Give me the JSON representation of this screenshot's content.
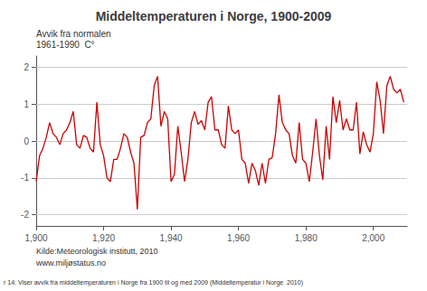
{
  "chart_data": {
    "type": "line",
    "title": "Middeltemperaturen i Norge, 1900-2009",
    "ylabel": [
      "Avvik fra normalen",
      "1961-1990  C°"
    ],
    "annotations": [
      "Kilde:Meteorologisk institutt, 2010",
      "www.miljøstatus.no",
      "r 14: Viser avvik fra middeltemperaturen i Norge fra 1900 til og med 2009 (Middeltemperatur i Norge  2010)"
    ],
    "color": "#cc0000",
    "xlim": [
      1900,
      2010
    ],
    "xticks": [
      1900,
      1920,
      1940,
      1960,
      1980,
      2000
    ],
    "ylim": [
      -2.3,
      2.3
    ],
    "yticks": [
      -2,
      -1,
      0,
      1,
      2
    ],
    "grid": true,
    "x": [
      1900,
      1901,
      1902,
      1903,
      1904,
      1905,
      1906,
      1907,
      1908,
      1909,
      1910,
      1911,
      1912,
      1913,
      1914,
      1915,
      1916,
      1917,
      1918,
      1919,
      1920,
      1921,
      1922,
      1923,
      1924,
      1925,
      1926,
      1927,
      1928,
      1929,
      1930,
      1931,
      1932,
      1933,
      1934,
      1935,
      1936,
      1937,
      1938,
      1939,
      1940,
      1941,
      1942,
      1943,
      1944,
      1945,
      1946,
      1947,
      1948,
      1949,
      1950,
      1951,
      1952,
      1953,
      1954,
      1955,
      1956,
      1957,
      1958,
      1959,
      1960,
      1961,
      1962,
      1963,
      1964,
      1965,
      1966,
      1967,
      1968,
      1969,
      1970,
      1971,
      1972,
      1973,
      1974,
      1975,
      1976,
      1977,
      1978,
      1979,
      1980,
      1981,
      1982,
      1983,
      1984,
      1985,
      1986,
      1987,
      1988,
      1989,
      1990,
      1991,
      1992,
      1993,
      1994,
      1995,
      1996,
      1997,
      1998,
      1999,
      2000,
      2001,
      2002,
      2003,
      2004,
      2005,
      2006,
      2007,
      2008,
      2009
    ],
    "values": [
      -1.1,
      -0.4,
      -0.2,
      0.1,
      0.5,
      0.2,
      0.1,
      -0.1,
      0.2,
      0.3,
      0.5,
      0.8,
      -0.1,
      -0.2,
      0.15,
      0.1,
      -0.2,
      -0.3,
      1.05,
      -0.1,
      -0.4,
      -1.0,
      -1.1,
      -0.5,
      -0.5,
      -0.2,
      0.2,
      0.1,
      -0.3,
      -0.6,
      -1.85,
      0.1,
      0.15,
      0.5,
      0.6,
      1.5,
      1.75,
      0.4,
      0.8,
      0.6,
      -1.1,
      -0.9,
      0.4,
      -0.3,
      -1.1,
      -0.5,
      0.5,
      0.8,
      0.45,
      0.55,
      0.3,
      1.05,
      1.2,
      0.3,
      0.3,
      -0.1,
      -0.2,
      0.95,
      0.3,
      0.2,
      0.3,
      -0.5,
      -0.6,
      -1.15,
      -0.6,
      -0.8,
      -1.2,
      -0.6,
      -1.15,
      -0.5,
      -0.45,
      0.2,
      1.25,
      0.5,
      0.3,
      0.2,
      -0.4,
      -0.6,
      0.5,
      -0.5,
      -0.6,
      -1.1,
      -0.3,
      0.6,
      -0.4,
      -1.05,
      0.4,
      -0.5,
      1.2,
      0.5,
      1.1,
      0.3,
      0.6,
      0.3,
      0.3,
      1.05,
      -0.35,
      0.25,
      -0.1,
      -0.3,
      0.2,
      1.6,
      1.1,
      0.2,
      1.5,
      1.75,
      1.4,
      1.3,
      1.4,
      1.05
    ]
  }
}
